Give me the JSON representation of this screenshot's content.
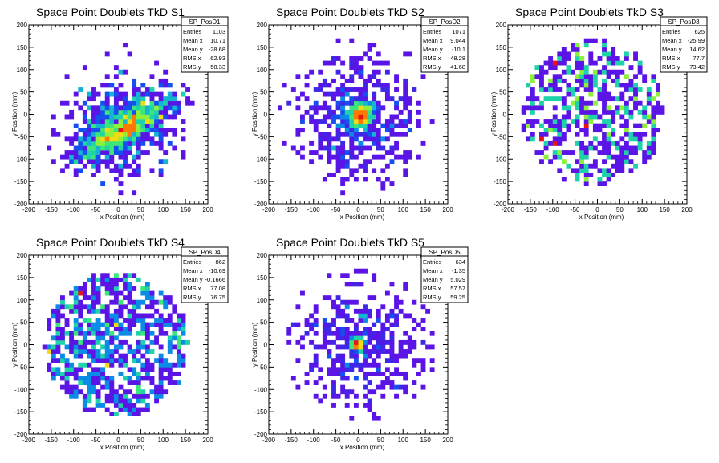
{
  "chart_data": [
    {
      "type": "heatmap",
      "title": "Space Point Doublets TkD S1",
      "xlabel": "x Position (mm)",
      "ylabel": "y Position (mm)",
      "xlim": [
        -200,
        200
      ],
      "ylim": [
        -200,
        200
      ],
      "xticks": [
        -200,
        -150,
        -100,
        -50,
        0,
        50,
        100,
        150,
        200
      ],
      "yticks": [
        -200,
        -150,
        -100,
        -50,
        0,
        50,
        100,
        150,
        200
      ],
      "stats": {
        "name": "SP_PosD1",
        "rows": [
          [
            "Entries",
            "1103"
          ],
          [
            "Mean x",
            "10.71"
          ],
          [
            "Mean y",
            "-28.68"
          ],
          [
            "RMS x",
            "62.93"
          ],
          [
            "RMS y",
            "58.33"
          ]
        ]
      },
      "distribution": {
        "entries": 1103,
        "mean_x": 10.71,
        "mean_y": -28.68,
        "rms_x": 62.93,
        "rms_y": 58.33,
        "cluster": "diagonal band"
      }
    },
    {
      "type": "heatmap",
      "title": "Space Point Doublets TkD S2",
      "xlabel": "x Position (mm)",
      "ylabel": "y Position (mm)",
      "xlim": [
        -200,
        200
      ],
      "ylim": [
        -200,
        200
      ],
      "xticks": [
        -200,
        -150,
        -100,
        -50,
        0,
        50,
        100,
        150,
        200
      ],
      "yticks": [
        -200,
        -150,
        -100,
        -50,
        0,
        50,
        100,
        150,
        200
      ],
      "stats": {
        "name": "SP_PosD2",
        "rows": [
          [
            "Entries",
            "1071"
          ],
          [
            "Mean x",
            "9.044"
          ],
          [
            "Mean y",
            "-10.1"
          ],
          [
            "RMS x",
            "48.28"
          ],
          [
            "RMS y",
            "41.68"
          ]
        ]
      },
      "distribution": {
        "entries": 1071,
        "mean_x": 9.044,
        "mean_y": -10.1,
        "rms_x": 48.28,
        "rms_y": 41.68,
        "cluster": "central peak"
      }
    },
    {
      "type": "heatmap",
      "title": "Space Point Doublets TkD S3",
      "xlabel": "x Position (mm)",
      "ylabel": "y Position (mm)",
      "xlim": [
        -200,
        200
      ],
      "ylim": [
        -200,
        200
      ],
      "xticks": [
        -200,
        -150,
        -100,
        -50,
        0,
        50,
        100,
        150,
        200
      ],
      "yticks": [
        -200,
        -150,
        -100,
        -50,
        0,
        50,
        100,
        150,
        200
      ],
      "stats": {
        "name": "SP_PosD3",
        "rows": [
          [
            "Entries",
            "625"
          ],
          [
            "Mean x",
            "-25.99"
          ],
          [
            "Mean y",
            "14.62"
          ],
          [
            "RMS x",
            "77.7"
          ],
          [
            "RMS y",
            "73.42"
          ]
        ]
      },
      "distribution": {
        "entries": 625,
        "mean_x": -25.99,
        "mean_y": 14.62,
        "rms_x": 77.7,
        "rms_y": 73.42,
        "cluster": "diffuse"
      }
    },
    {
      "type": "heatmap",
      "title": "Space Point Doublets TkD S4",
      "xlabel": "x Position (mm)",
      "ylabel": "y Position (mm)",
      "xlim": [
        -200,
        200
      ],
      "ylim": [
        -200,
        200
      ],
      "xticks": [
        -200,
        -150,
        -100,
        -50,
        0,
        50,
        100,
        150,
        200
      ],
      "yticks": [
        -200,
        -150,
        -100,
        -50,
        0,
        50,
        100,
        150,
        200
      ],
      "stats": {
        "name": "SP_PosD4",
        "rows": [
          [
            "Entries",
            "862"
          ],
          [
            "Mean x",
            "-10.69"
          ],
          [
            "Mean y",
            "-0.1666"
          ],
          [
            "RMS x",
            "77.08"
          ],
          [
            "RMS y",
            "76.75"
          ]
        ]
      },
      "distribution": {
        "entries": 862,
        "mean_x": -10.69,
        "mean_y": -0.1666,
        "rms_x": 77.08,
        "rms_y": 76.75,
        "cluster": "diffuse"
      }
    },
    {
      "type": "heatmap",
      "title": "Space Point Doublets TkD S5",
      "xlabel": "x Position (mm)",
      "ylabel": "y Position (mm)",
      "xlim": [
        -200,
        200
      ],
      "ylim": [
        -200,
        200
      ],
      "xticks": [
        -200,
        -150,
        -100,
        -50,
        0,
        50,
        100,
        150,
        200
      ],
      "yticks": [
        -200,
        -150,
        -100,
        -50,
        0,
        50,
        100,
        150,
        200
      ],
      "stats": {
        "name": "SP_PosD5",
        "rows": [
          [
            "Entries",
            "634"
          ],
          [
            "Mean x",
            "-1.35"
          ],
          [
            "Mean y",
            "5.029"
          ],
          [
            "RMS x",
            "57.57"
          ],
          [
            "RMS y",
            "59.25"
          ]
        ]
      },
      "distribution": {
        "entries": 634,
        "mean_x": -1.35,
        "mean_y": 5.029,
        "rms_x": 57.57,
        "rms_y": 59.25,
        "cluster": "sharp central peak"
      }
    }
  ],
  "colors": {
    "axis": "#000000",
    "background": "#ffffff",
    "palette": [
      "#5a14e6",
      "#3c28e6",
      "#1450f0",
      "#0a8ce6",
      "#14b4d2",
      "#1ed2aa",
      "#3ce678",
      "#8cf03c",
      "#f0dc14",
      "#ff7800",
      "#e61414"
    ]
  }
}
